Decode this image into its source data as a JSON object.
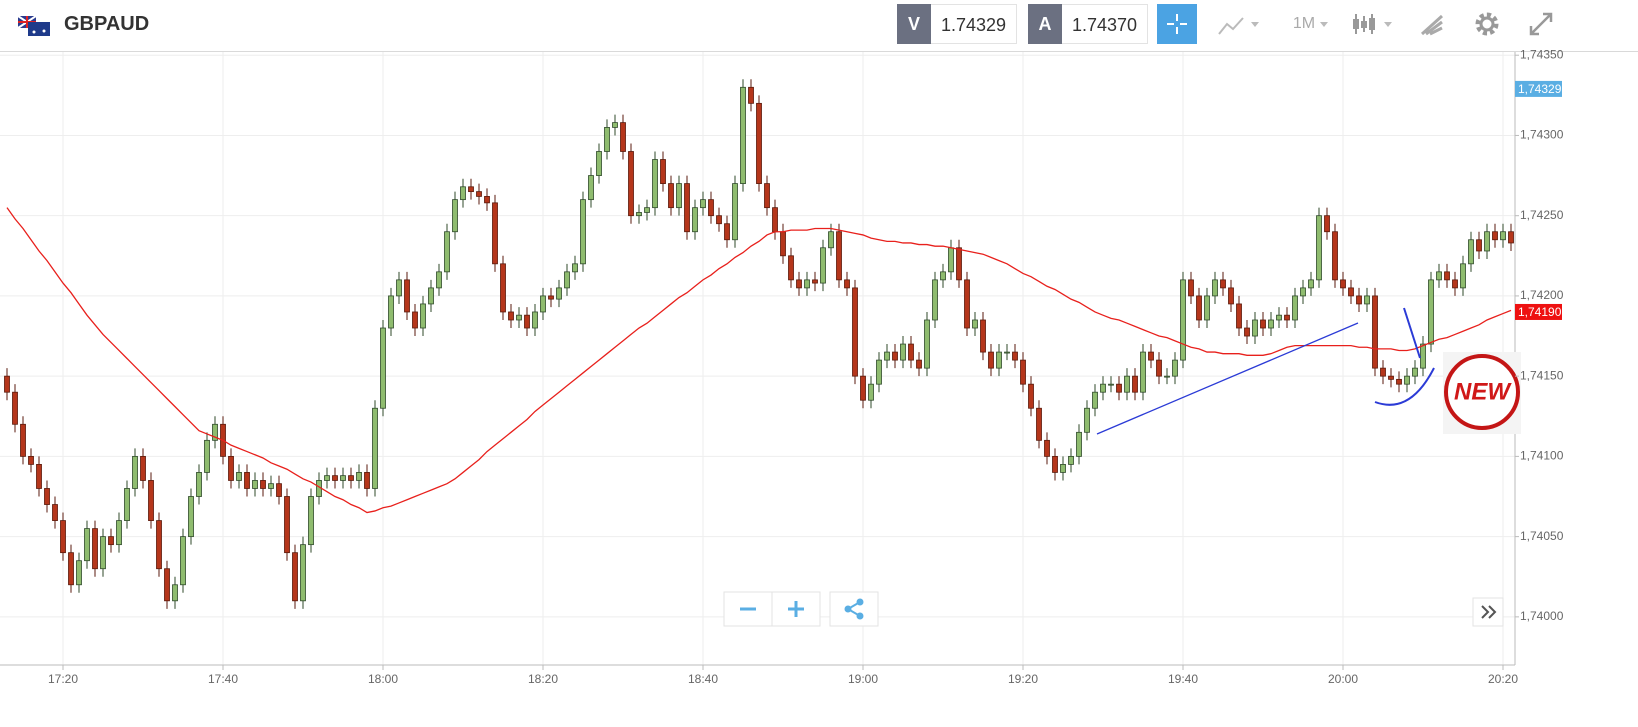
{
  "header": {
    "symbol": "GBPAUD",
    "bid_label": "V",
    "bid": "1.74329",
    "ask_label": "A",
    "ask": "1.74370",
    "timeframe": "1M"
  },
  "badge": "NEW",
  "chart_data": {
    "type": "candlestick",
    "up_color": "#8fbc6f",
    "down_color": "#b5361b",
    "categories": [
      null,
      null,
      null,
      null,
      null,
      null,
      null,
      "17:20",
      null,
      null,
      null,
      null,
      null,
      null,
      null,
      null,
      null,
      null,
      null,
      null,
      null,
      null,
      null,
      null,
      null,
      null,
      null,
      "17:40",
      null,
      null,
      null,
      null,
      null,
      null,
      null,
      null,
      null,
      null,
      null,
      null,
      null,
      null,
      null,
      null,
      null,
      null,
      null,
      "18:00",
      null,
      null,
      null,
      null,
      null,
      null,
      null,
      null,
      null,
      null,
      null,
      null,
      null,
      null,
      null,
      null,
      null,
      null,
      null,
      "18:20",
      null,
      null,
      null,
      null,
      null,
      null,
      null,
      null,
      null,
      null,
      null,
      null,
      null,
      null,
      null,
      null,
      null,
      null,
      null,
      "18:40",
      null,
      null,
      null,
      null,
      null,
      null,
      null,
      null,
      null,
      null,
      null,
      null,
      null,
      null,
      null,
      null,
      null,
      null,
      null,
      "19:00",
      null,
      null,
      null,
      null,
      null,
      null,
      null,
      null,
      null,
      null,
      null,
      null,
      null,
      null,
      null,
      null,
      null,
      null,
      null,
      "19:20",
      null,
      null,
      null,
      null,
      null,
      null,
      null,
      null,
      null,
      null,
      null,
      null,
      null,
      null,
      null,
      null,
      null,
      null,
      null,
      "19:40",
      null,
      null,
      null,
      null,
      null,
      null,
      null,
      null,
      null,
      null,
      null,
      null,
      null,
      null,
      null,
      null,
      null,
      null,
      null,
      "20:00",
      null,
      null,
      null,
      null,
      null,
      null,
      null,
      null,
      null,
      null,
      null,
      null,
      null,
      null,
      null,
      null,
      null,
      null,
      null,
      "20:20",
      null
    ],
    "open": [
      1.7415,
      1.7414,
      1.7412,
      1.741,
      1.74095,
      1.7408,
      1.7407,
      1.7406,
      1.7404,
      1.7402,
      1.74035,
      1.74055,
      1.7403,
      1.7405,
      1.74045,
      1.7406,
      1.7408,
      1.741,
      1.74085,
      1.7406,
      1.7403,
      1.7401,
      1.7402,
      1.7405,
      1.74075,
      1.7409,
      1.7411,
      1.7412,
      1.741,
      1.74085,
      1.7409,
      1.7408,
      1.74085,
      1.7408,
      1.74083,
      1.74075,
      1.7404,
      1.7401,
      1.74045,
      1.74075,
      1.74085,
      1.74088,
      1.74085,
      1.74088,
      1.74085,
      1.7409,
      1.7408,
      1.7413,
      1.7418,
      1.742,
      1.7421,
      1.7419,
      1.7418,
      1.74195,
      1.74205,
      1.74215,
      1.7424,
      1.7426,
      1.74268,
      1.74265,
      1.74262,
      1.74258,
      1.7422,
      1.7419,
      1.74185,
      1.74188,
      1.7418,
      1.7419,
      1.742,
      1.74198,
      1.74205,
      1.74215,
      1.7422,
      1.7426,
      1.74275,
      1.7429,
      1.74305,
      1.74308,
      1.7429,
      1.7425,
      1.74252,
      1.74255,
      1.74285,
      1.7427,
      1.74255,
      1.7427,
      1.7424,
      1.74255,
      1.7426,
      1.7425,
      1.74245,
      1.74235,
      1.7427,
      1.7433,
      1.7432,
      1.7427,
      1.74255,
      1.7424,
      1.74225,
      1.7421,
      1.74205,
      1.7421,
      1.74208,
      1.7423,
      1.7424,
      1.7421,
      1.74205,
      1.7415,
      1.74135,
      1.74145,
      1.7416,
      1.74165,
      1.7416,
      1.7417,
      1.7416,
      1.74155,
      1.74185,
      1.7421,
      1.74215,
      1.7423,
      1.7421,
      1.7418,
      1.74185,
      1.74165,
      1.74155,
      1.74165,
      1.74165,
      1.7416,
      1.74145,
      1.7413,
      1.7411,
      1.741,
      1.7409,
      1.74095,
      1.741,
      1.74115,
      1.7413,
      1.7414,
      1.74145,
      1.74145,
      1.7414,
      1.7415,
      1.7414,
      1.74165,
      1.7416,
      1.7415,
      1.7415,
      1.7416,
      1.7421,
      1.742,
      1.74185,
      1.742,
      1.7421,
      1.74205,
      1.74195,
      1.7418,
      1.74175,
      1.74185,
      1.7418,
      1.74185,
      1.74188,
      1.74185,
      1.742,
      1.74205,
      1.7421,
      1.7425,
      1.7424,
      1.7421,
      1.74205,
      1.742,
      1.74195,
      1.742,
      1.74155,
      1.7415,
      1.74148,
      1.74145,
      1.7415,
      1.74155,
      1.7417,
      1.7421,
      1.74215,
      1.7421,
      1.74205,
      1.7422,
      1.74235,
      1.74228,
      1.7424,
      1.74235,
      1.7424
    ],
    "high": [
      1.74155,
      1.74145,
      1.74125,
      1.74105,
      1.741,
      1.74085,
      1.74075,
      1.74065,
      1.74045,
      1.7404,
      1.7406,
      1.7406,
      1.74055,
      1.74055,
      1.74065,
      1.74085,
      1.74105,
      1.74105,
      1.7409,
      1.74065,
      1.74035,
      1.74025,
      1.74055,
      1.7408,
      1.74095,
      1.74115,
      1.74125,
      1.74125,
      1.74105,
      1.74095,
      1.74095,
      1.7409,
      1.7409,
      1.74088,
      1.74088,
      1.7408,
      1.74045,
      1.7405,
      1.7408,
      1.7409,
      1.74093,
      1.74093,
      1.74093,
      1.74093,
      1.74095,
      1.74095,
      1.74135,
      1.74185,
      1.74205,
      1.74215,
      1.74215,
      1.74195,
      1.742,
      1.7421,
      1.7422,
      1.74245,
      1.74265,
      1.74273,
      1.74273,
      1.7427,
      1.74267,
      1.74263,
      1.74225,
      1.74195,
      1.74193,
      1.74193,
      1.74195,
      1.74205,
      1.74205,
      1.7421,
      1.7422,
      1.74225,
      1.74265,
      1.7428,
      1.74295,
      1.7431,
      1.74313,
      1.74313,
      1.74295,
      1.74257,
      1.7426,
      1.7429,
      1.7429,
      1.74275,
      1.74275,
      1.74275,
      1.7426,
      1.74265,
      1.74265,
      1.74255,
      1.7425,
      1.74275,
      1.74335,
      1.74335,
      1.74325,
      1.74275,
      1.7426,
      1.74245,
      1.7423,
      1.74215,
      1.74215,
      1.74215,
      1.74235,
      1.74245,
      1.74245,
      1.74215,
      1.7421,
      1.74155,
      1.7415,
      1.74165,
      1.7417,
      1.7417,
      1.74175,
      1.74175,
      1.74165,
      1.7419,
      1.74215,
      1.7422,
      1.74235,
      1.74235,
      1.74215,
      1.7419,
      1.7419,
      1.7417,
      1.7417,
      1.7417,
      1.7417,
      1.74165,
      1.7415,
      1.74135,
      1.74115,
      1.74105,
      1.741,
      1.74105,
      1.7412,
      1.74135,
      1.74145,
      1.7415,
      1.7415,
      1.7415,
      1.74155,
      1.74155,
      1.7417,
      1.7417,
      1.74165,
      1.74155,
      1.74165,
      1.74215,
      1.74215,
      1.74205,
      1.74205,
      1.74215,
      1.74215,
      1.7421,
      1.742,
      1.74185,
      1.7419,
      1.7419,
      1.7419,
      1.74193,
      1.74193,
      1.74205,
      1.7421,
      1.74215,
      1.74255,
      1.74255,
      1.74245,
      1.74215,
      1.7421,
      1.74205,
      1.74205,
      1.74205,
      1.7416,
      1.74155,
      1.74153,
      1.74155,
      1.7416,
      1.74175,
      1.74215,
      1.7422,
      1.7422,
      1.74215,
      1.74225,
      1.7424,
      1.7424,
      1.74245,
      1.74245,
      1.74245,
      1.74245
    ],
    "low": [
      1.74135,
      1.74115,
      1.74095,
      1.7409,
      1.74075,
      1.74065,
      1.74055,
      1.74035,
      1.74015,
      1.74015,
      1.7403,
      1.74025,
      1.74025,
      1.7404,
      1.7404,
      1.74055,
      1.74075,
      1.7408,
      1.74055,
      1.74025,
      1.74005,
      1.74005,
      1.74015,
      1.74045,
      1.7407,
      1.74085,
      1.74105,
      1.74095,
      1.7408,
      1.7408,
      1.74075,
      1.74075,
      1.74075,
      1.74075,
      1.7407,
      1.74035,
      1.74005,
      1.74005,
      1.7404,
      1.7407,
      1.7408,
      1.7408,
      1.7408,
      1.7408,
      1.7408,
      1.74075,
      1.74075,
      1.74125,
      1.74175,
      1.74195,
      1.74185,
      1.74175,
      1.74175,
      1.7419,
      1.742,
      1.7421,
      1.74235,
      1.74255,
      1.7426,
      1.74257,
      1.74253,
      1.74215,
      1.74185,
      1.7418,
      1.7418,
      1.74175,
      1.74175,
      1.74185,
      1.74193,
      1.74193,
      1.742,
      1.7421,
      1.74215,
      1.74255,
      1.7427,
      1.74285,
      1.743,
      1.74285,
      1.74245,
      1.74245,
      1.74247,
      1.7425,
      1.74265,
      1.7425,
      1.7425,
      1.74235,
      1.74235,
      1.7425,
      1.74245,
      1.7424,
      1.7423,
      1.7423,
      1.74265,
      1.74315,
      1.74265,
      1.7425,
      1.74235,
      1.7422,
      1.74205,
      1.742,
      1.742,
      1.74203,
      1.74203,
      1.74225,
      1.74205,
      1.742,
      1.74145,
      1.7413,
      1.7413,
      1.7414,
      1.74155,
      1.74155,
      1.74155,
      1.74155,
      1.7415,
      1.7415,
      1.7418,
      1.74205,
      1.7421,
      1.74205,
      1.74175,
      1.74175,
      1.7416,
      1.7415,
      1.7415,
      1.7416,
      1.74155,
      1.7414,
      1.74125,
      1.74105,
      1.74095,
      1.74085,
      1.74085,
      1.7409,
      1.74095,
      1.7411,
      1.74125,
      1.74135,
      1.7414,
      1.74135,
      1.74135,
      1.74135,
      1.74135,
      1.74155,
      1.74145,
      1.74145,
      1.74145,
      1.74155,
      1.74195,
      1.7418,
      1.7418,
      1.74195,
      1.742,
      1.7419,
      1.74175,
      1.7417,
      1.7417,
      1.74175,
      1.74175,
      1.7418,
      1.7418,
      1.7418,
      1.74195,
      1.742,
      1.74205,
      1.74235,
      1.74205,
      1.742,
      1.74195,
      1.7419,
      1.7419,
      1.7415,
      1.74145,
      1.74143,
      1.7414,
      1.7414,
      1.74145,
      1.7415,
      1.74165,
      1.74205,
      1.74205,
      1.742,
      1.742,
      1.74215,
      1.74223,
      1.74223,
      1.7423,
      1.7423,
      1.74228
    ],
    "close": [
      1.7414,
      1.7412,
      1.741,
      1.74095,
      1.7408,
      1.7407,
      1.7406,
      1.7404,
      1.7402,
      1.74035,
      1.74055,
      1.7403,
      1.7405,
      1.74045,
      1.7406,
      1.7408,
      1.741,
      1.74085,
      1.7406,
      1.7403,
      1.7401,
      1.7402,
      1.7405,
      1.74075,
      1.7409,
      1.7411,
      1.7412,
      1.741,
      1.74085,
      1.7409,
      1.7408,
      1.74085,
      1.7408,
      1.74083,
      1.74075,
      1.7404,
      1.7401,
      1.74045,
      1.74075,
      1.74085,
      1.74088,
      1.74085,
      1.74088,
      1.74085,
      1.7409,
      1.7408,
      1.7413,
      1.7418,
      1.742,
      1.7421,
      1.7419,
      1.7418,
      1.74195,
      1.74205,
      1.74215,
      1.7424,
      1.7426,
      1.74268,
      1.74265,
      1.74262,
      1.74258,
      1.7422,
      1.7419,
      1.74185,
      1.74188,
      1.7418,
      1.7419,
      1.742,
      1.74198,
      1.74205,
      1.74215,
      1.7422,
      1.7426,
      1.74275,
      1.7429,
      1.74305,
      1.74308,
      1.7429,
      1.7425,
      1.74252,
      1.74255,
      1.74285,
      1.7427,
      1.74255,
      1.7427,
      1.7424,
      1.74255,
      1.7426,
      1.7425,
      1.74245,
      1.74235,
      1.7427,
      1.7433,
      1.7432,
      1.7427,
      1.74255,
      1.7424,
      1.74225,
      1.7421,
      1.74205,
      1.7421,
      1.74208,
      1.7423,
      1.7424,
      1.7421,
      1.74205,
      1.7415,
      1.74135,
      1.74145,
      1.7416,
      1.74165,
      1.7416,
      1.7417,
      1.7416,
      1.74155,
      1.74185,
      1.7421,
      1.74215,
      1.7423,
      1.7421,
      1.7418,
      1.74185,
      1.74165,
      1.74155,
      1.74165,
      1.74165,
      1.7416,
      1.74145,
      1.7413,
      1.7411,
      1.741,
      1.7409,
      1.74095,
      1.741,
      1.74115,
      1.7413,
      1.7414,
      1.74145,
      1.74145,
      1.7414,
      1.7415,
      1.7414,
      1.74165,
      1.7416,
      1.7415,
      1.7415,
      1.7416,
      1.7421,
      1.742,
      1.74185,
      1.742,
      1.7421,
      1.74205,
      1.74195,
      1.7418,
      1.74175,
      1.74185,
      1.7418,
      1.74185,
      1.74188,
      1.74185,
      1.742,
      1.74205,
      1.7421,
      1.7425,
      1.7424,
      1.7421,
      1.74205,
      1.742,
      1.74195,
      1.742,
      1.74155,
      1.7415,
      1.74148,
      1.74145,
      1.7415,
      1.74155,
      1.7417,
      1.7421,
      1.74215,
      1.7421,
      1.74205,
      1.7422,
      1.74235,
      1.74228,
      1.7424,
      1.74235,
      1.7424,
      1.74233
    ],
    "ma": {
      "color": "#e8201c",
      "values": [
        1.74255,
        1.74248,
        1.74242,
        1.74235,
        1.74228,
        1.74222,
        1.74215,
        1.74208,
        1.74202,
        1.74195,
        1.74188,
        1.74182,
        1.74176,
        1.74171,
        1.74166,
        1.74161,
        1.74156,
        1.74151,
        1.74146,
        1.74141,
        1.74136,
        1.74131,
        1.74126,
        1.74121,
        1.74116,
        1.74114,
        1.74112,
        1.7411,
        1.74107,
        1.74105,
        1.74103,
        1.74101,
        1.74099,
        1.74096,
        1.74094,
        1.74092,
        1.74089,
        1.74086,
        1.74084,
        1.74081,
        1.74078,
        1.74075,
        1.74073,
        1.7407,
        1.74068,
        1.74065,
        1.74066,
        1.74068,
        1.74069,
        1.74071,
        1.74073,
        1.74075,
        1.74077,
        1.74079,
        1.74081,
        1.74083,
        1.74086,
        1.7409,
        1.74094,
        1.74098,
        1.74103,
        1.74107,
        1.74111,
        1.74115,
        1.74119,
        1.74123,
        1.74128,
        1.74132,
        1.74136,
        1.7414,
        1.74144,
        1.74148,
        1.74152,
        1.74156,
        1.7416,
        1.74164,
        1.74168,
        1.74172,
        1.74176,
        1.7418,
        1.74183,
        1.74187,
        1.74191,
        1.74195,
        1.74199,
        1.74202,
        1.74206,
        1.7421,
        1.74213,
        1.74217,
        1.7422,
        1.74224,
        1.74227,
        1.74231,
        1.74234,
        1.74238,
        1.7424,
        1.7424,
        1.74241,
        1.74241,
        1.74241,
        1.74242,
        1.74242,
        1.74242,
        1.74241,
        1.7424,
        1.74239,
        1.74238,
        1.74236,
        1.74235,
        1.74234,
        1.74234,
        1.74233,
        1.74233,
        1.74232,
        1.74232,
        1.74231,
        1.74231,
        1.7423,
        1.74229,
        1.74228,
        1.74227,
        1.74226,
        1.74224,
        1.74222,
        1.7422,
        1.74217,
        1.74214,
        1.74212,
        1.74209,
        1.74206,
        1.74204,
        1.74201,
        1.74198,
        1.74196,
        1.74193,
        1.7419,
        1.74188,
        1.74186,
        1.74185,
        1.74183,
        1.74181,
        1.74179,
        1.74177,
        1.74175,
        1.74174,
        1.74172,
        1.7417,
        1.74168,
        1.74167,
        1.74165,
        1.74165,
        1.74164,
        1.74164,
        1.74164,
        1.74163,
        1.74163,
        1.74163,
        1.74164,
        1.74166,
        1.74168,
        1.74169,
        1.74169,
        1.74169,
        1.74169,
        1.74169,
        1.74169,
        1.74169,
        1.74169,
        1.74168,
        1.74168,
        1.74167,
        1.74167,
        1.74167,
        1.74166,
        1.74166,
        1.74167,
        1.74169,
        1.74171,
        1.74173,
        1.74174,
        1.74176,
        1.74178,
        1.7418,
        1.74182,
        1.74185,
        1.74187,
        1.74189,
        1.74191
      ]
    },
    "ylim": [
      1.7397,
      1.74352
    ],
    "yticks": [
      {
        "value": 1.74,
        "label": "1,74000"
      },
      {
        "value": 1.7405,
        "label": "1,74050"
      },
      {
        "value": 1.741,
        "label": "1,74100"
      },
      {
        "value": 1.7415,
        "label": "1,74150"
      },
      {
        "value": 1.742,
        "label": "1,74200"
      },
      {
        "value": 1.7425,
        "label": "1,74250"
      },
      {
        "value": 1.743,
        "label": "1,74300"
      },
      {
        "value": 1.7435,
        "label": "1,74350"
      }
    ],
    "grid": true,
    "price_markers": [
      {
        "value": 1.74329,
        "label": "1,74329",
        "color": "#5aaee3"
      },
      {
        "value": 1.7419,
        "label": "1,74190",
        "color": "#ee1111"
      }
    ]
  }
}
